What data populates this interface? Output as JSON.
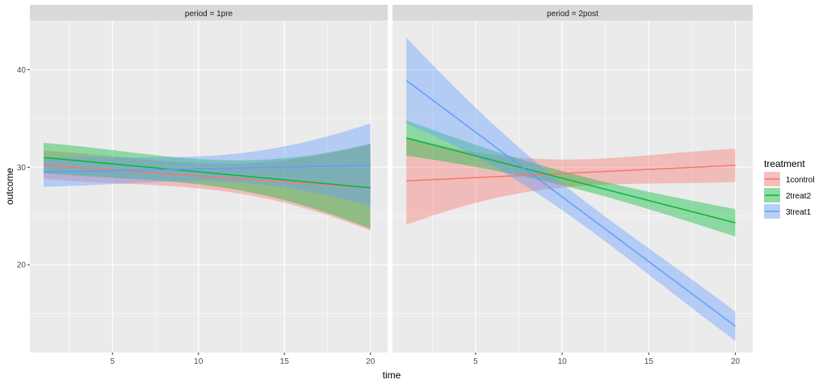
{
  "chart_data": {
    "type": "line",
    "xlabel": "time",
    "ylabel": "outcome",
    "xlim": [
      0.2,
      21.0
    ],
    "ylim": [
      11.0,
      45.0
    ],
    "x_ticks": [
      5,
      10,
      15,
      20
    ],
    "y_ticks": [
      20,
      30,
      40
    ],
    "grid": true,
    "legend": {
      "title": "treatment",
      "position": "right",
      "entries": [
        "1control",
        "2treat2",
        "3treat1"
      ]
    },
    "colors": {
      "1control": "#F8766D",
      "2treat2": "#00BA38",
      "3treat1": "#619CFF",
      "panel_bg": "#EBEBEB",
      "strip_bg": "#D9D9D9",
      "grid": "#FFFFFF"
    },
    "panels": [
      {
        "label": "period = 1pre",
        "x_range": [
          1,
          20
        ],
        "series": [
          {
            "name": "1control",
            "fit": [
              30.2,
              27.9
            ],
            "lower": [
              28.8,
              23.5
            ],
            "upper": [
              31.7,
              32.4
            ]
          },
          {
            "name": "2treat2",
            "fit": [
              31.0,
              27.9
            ],
            "lower": [
              29.4,
              23.7
            ],
            "upper": [
              32.5,
              32.4
            ]
          },
          {
            "name": "3treat1",
            "fit": [
              29.5,
              30.2
            ],
            "lower": [
              28.0,
              26.0
            ],
            "upper": [
              31.0,
              34.5
            ]
          }
        ]
      },
      {
        "label": "period = 2post",
        "x_range": [
          1,
          20
        ],
        "series": [
          {
            "name": "1control",
            "fit": [
              28.6,
              30.2
            ],
            "lower": [
              24.1,
              28.5
            ],
            "upper": [
              33.1,
              31.9
            ]
          },
          {
            "name": "2treat2",
            "fit": [
              33.0,
              24.3
            ],
            "lower": [
              31.2,
              22.9
            ],
            "upper": [
              34.8,
              25.7
            ]
          },
          {
            "name": "3treat1",
            "fit": [
              38.9,
              13.7
            ],
            "lower": [
              34.5,
              12.2
            ],
            "upper": [
              43.3,
              15.2
            ]
          }
        ]
      }
    ]
  }
}
